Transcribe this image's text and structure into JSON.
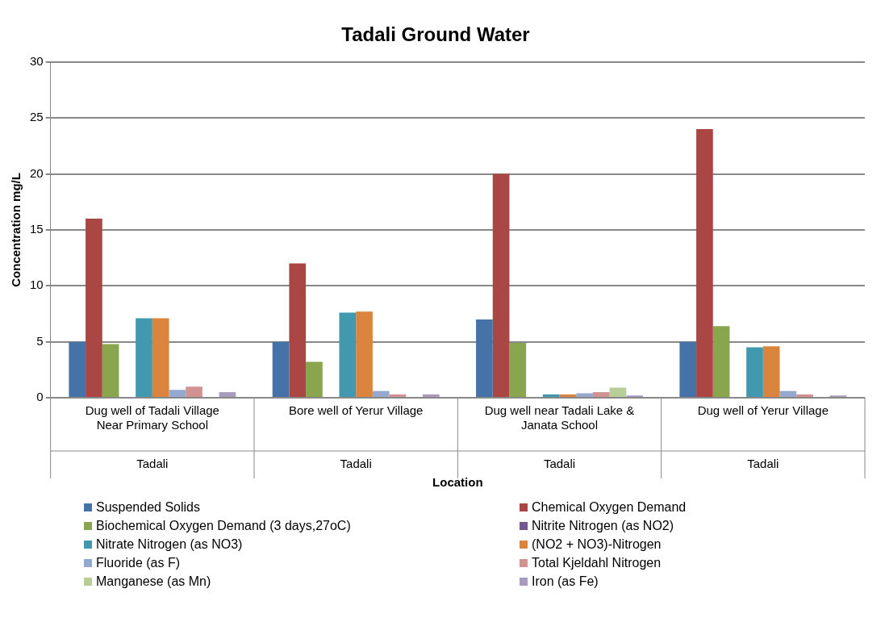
{
  "chart_data": {
    "type": "bar",
    "title": "Tadali Ground Water",
    "xlabel": "Location",
    "ylabel": "Concentration mg/L",
    "categories": [
      "Dug well of Tadali Village Near Primary School",
      "Bore well of Yerur Village",
      "Dug well near Tadali Lake & Janata School",
      "Dug well of Yerur Village"
    ],
    "series": [
      {
        "name": "Suspended Solids",
        "color": "#4572a7",
        "values": [
          5,
          5,
          7,
          5
        ]
      },
      {
        "name": "Chemical Oxygen Demand",
        "color": "#aa4643",
        "values": [
          16,
          12,
          20,
          24
        ]
      },
      {
        "name": "Biochemical Oxygen Demand  (3 days,27oC)",
        "color": "#89a54e",
        "values": [
          4.8,
          3.2,
          4.9,
          6.4
        ]
      },
      {
        "name": "Nitrite Nitrogen (as NO2)",
        "color": "#71588f",
        "values": [
          null,
          null,
          null,
          null
        ]
      },
      {
        "name": "Nitrate Nitrogen (as NO3)",
        "color": "#4198af",
        "values": [
          7.1,
          7.6,
          0.3,
          4.5
        ]
      },
      {
        "name": "(NO2 + NO3)-Nitrogen",
        "color": "#db843d",
        "values": [
          7.1,
          7.7,
          0.3,
          4.6
        ]
      },
      {
        "name": "Fluoride (as F)",
        "color": "#93a9cf",
        "values": [
          0.7,
          0.6,
          0.4,
          0.6
        ]
      },
      {
        "name": "Total Kjeldahl Nitrogen",
        "color": "#d19392",
        "values": [
          1.0,
          0.3,
          0.5,
          0.3
        ]
      },
      {
        "name": "Manganese (as Mn)",
        "color": "#b9cd96",
        "values": [
          null,
          null,
          0.9,
          null
        ]
      },
      {
        "name": "Iron (as Fe)",
        "color": "#a99bbd",
        "values": [
          0.5,
          0.3,
          0.2,
          0.2
        ]
      }
    ],
    "ylim": [
      0,
      30
    ],
    "yticks": [
      0,
      5,
      10,
      15,
      20,
      25,
      30
    ],
    "grid": "y",
    "legend": "bottom",
    "annotations": [
      "Tadali",
      "Tadali",
      "Tadali",
      "Tadali"
    ]
  }
}
